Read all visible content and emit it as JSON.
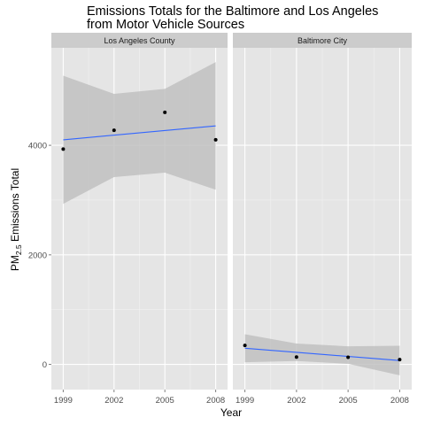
{
  "title_lines": [
    "Emissions Totals for the Baltimore and Los Angeles",
    "from Motor Vehicle Sources"
  ],
  "xlabel": "Year",
  "ylabel": {
    "prefix": "PM",
    "subscript": "2.5",
    "suffix": " Emissions Total"
  },
  "colors": {
    "panel_bg": "#e5e5e5",
    "strip_bg": "#cccccc",
    "grid_major": "#ffffff",
    "grid_minor": "#f2f2f2",
    "ribbon": "#bebebe",
    "fit_line": "#3366ff",
    "points": "#000000"
  },
  "chart_data": {
    "type": "scatter",
    "overlay": "linear fit with confidence ribbon",
    "title": "Emissions Totals for the Baltimore and Los Angeles from Motor Vehicle Sources",
    "xlabel": "Year",
    "ylabel": "PM2.5 Emissions Total",
    "x_ticks": [
      1999,
      2002,
      2005,
      2008
    ],
    "y_ticks": [
      0,
      2000,
      4000
    ],
    "xlim": [
      1998.3,
      2008.7
    ],
    "ylim": [
      -460,
      5780
    ],
    "grid": true,
    "panels": [
      {
        "label": "Los Angeles County",
        "points": [
          {
            "x": 1999,
            "y": 3931
          },
          {
            "x": 2002,
            "y": 4274
          },
          {
            "x": 2005,
            "y": 4601
          },
          {
            "x": 2008,
            "y": 4101
          }
        ],
        "fit": {
          "x": [
            1999,
            2008
          ],
          "y": [
            4100,
            4355
          ]
        },
        "ribbon": {
          "x": [
            1999,
            2002,
            2005,
            2008
          ],
          "lower": [
            2930,
            3420,
            3500,
            3190
          ],
          "upper": [
            5270,
            4940,
            5030,
            5520
          ]
        }
      },
      {
        "label": "Baltimore City",
        "points": [
          {
            "x": 1999,
            "y": 347
          },
          {
            "x": 2002,
            "y": 134
          },
          {
            "x": 2005,
            "y": 130
          },
          {
            "x": 2008,
            "y": 88
          }
        ],
        "fit": {
          "x": [
            1999,
            2008
          ],
          "y": [
            295,
            70
          ]
        },
        "ribbon": {
          "x": [
            1999,
            2002,
            2005,
            2008
          ],
          "lower": [
            40,
            60,
            10,
            -200
          ],
          "upper": [
            550,
            380,
            330,
            340
          ]
        }
      }
    ]
  }
}
